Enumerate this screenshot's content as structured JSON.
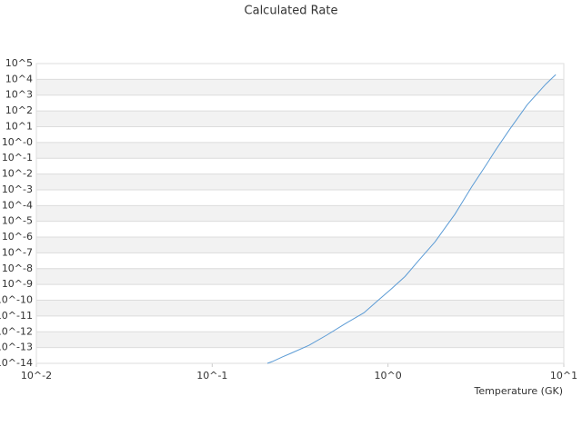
{
  "chart_data": {
    "type": "line",
    "title": "Calculated Rate",
    "x_label": "Temperature (GK)",
    "xscale": "log",
    "yscale": "log",
    "xlim": [
      0.01,
      10
    ],
    "ylim": [
      1e-14,
      100000
    ],
    "xticks": [
      {
        "value": 0.01,
        "label": "10^-2"
      },
      {
        "value": 0.1,
        "label": "10^-1"
      },
      {
        "value": 1,
        "label": "10^0"
      },
      {
        "value": 10,
        "label": "10^1"
      }
    ],
    "yticks": [
      {
        "value": 100000,
        "label": "10^5"
      },
      {
        "value": 10000,
        "label": "10^4"
      },
      {
        "value": 1000,
        "label": "10^3"
      },
      {
        "value": 100,
        "label": "10^2"
      },
      {
        "value": 10,
        "label": "10^1"
      },
      {
        "value": 1,
        "label": "10^-0"
      },
      {
        "value": 0.1,
        "label": "10^-1"
      },
      {
        "value": 0.01,
        "label": "10^-2"
      },
      {
        "value": 0.001,
        "label": "10^-3"
      },
      {
        "value": 0.0001,
        "label": "10^-4"
      },
      {
        "value": 1e-05,
        "label": "10^-5"
      },
      {
        "value": 1e-06,
        "label": "10^-6"
      },
      {
        "value": 1e-07,
        "label": "10^-7"
      },
      {
        "value": 1e-08,
        "label": "10^-8"
      },
      {
        "value": 1e-09,
        "label": "10^-9"
      },
      {
        "value": 1e-10,
        "label": "10^-10"
      },
      {
        "value": 1e-11,
        "label": "10^-11"
      },
      {
        "value": 1e-12,
        "label": "10^-12"
      },
      {
        "value": 1e-13,
        "label": "10^-13"
      },
      {
        "value": 1e-14,
        "label": "10^-14"
      }
    ],
    "grid": true,
    "x": [
      0.206,
      0.22,
      0.25,
      0.28,
      0.356,
      0.45,
      0.57,
      0.73,
      0.88,
      1.04,
      1.25,
      1.49,
      1.85,
      2.4,
      3.0,
      3.6,
      4.1,
      4.9,
      6.2,
      7.9,
      9.0
    ],
    "series": [
      {
        "color": "#5b9bd5",
        "values": [
          1e-14,
          1.3e-14,
          2.5e-14,
          4.3e-14,
          1.4e-13,
          6.3e-13,
          3.2e-12,
          1.6e-11,
          1e-10,
          5e-10,
          3.2e-09,
          3.2e-08,
          5e-07,
          2.8e-05,
          0.0016,
          0.035,
          0.34,
          6.3,
          250,
          5000,
          20000
        ]
      }
    ]
  }
}
